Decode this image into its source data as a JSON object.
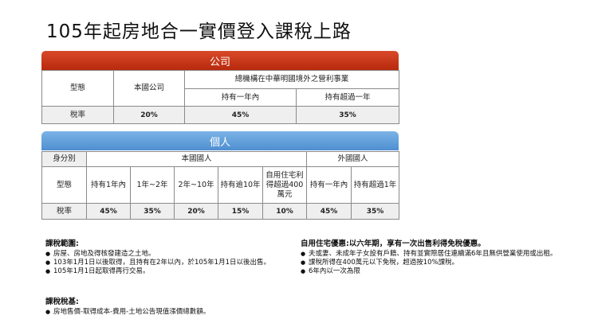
{
  "title": "105年起房地合一實價登入課稅上路",
  "company": {
    "header": "公司",
    "type_label": "型態",
    "domestic": "本國公司",
    "foreign": "總機構在中華明國境外之營利事業",
    "foreign_sub": [
      "持有一年內",
      "持有超過一年"
    ],
    "rate_label": "稅率",
    "rates": [
      "20%",
      "45%",
      "35%"
    ]
  },
  "individual": {
    "header": "個人",
    "identity_label": "身分別",
    "domestic": "本國國人",
    "foreign": "外國國人",
    "type_label": "型態",
    "types": [
      "持有1年內",
      "1年~2年",
      "2年~10年",
      "持有逾10年",
      "自用住宅利得超過400萬元",
      "持有一年內",
      "持有超過1年"
    ],
    "rate_label": "稅率",
    "rates": [
      "45%",
      "35%",
      "20%",
      "15%",
      "10%",
      "45%",
      "35%"
    ]
  },
  "scope": {
    "heading": "課稅範圍:",
    "items": [
      "房屋、房地及得核發建造之土地。",
      "103年1月1日以後取得，且持有在2年以內，於105年1月1日以後出售。",
      "105年1月1日起取得再行交易。"
    ]
  },
  "base": {
    "heading": "課稅稅基:",
    "items": [
      "房地售價-取得成本-費用-土地公告現值漲價總數額。"
    ]
  },
  "preferential": {
    "heading": "自用住宅優惠:以六年期，享有一次出售利得免稅優惠。",
    "items": [
      "夫或妻、未成年子女設有戶籍、持有並實際居住連續滿6年且無供營業使用或出租。",
      "課稅所得在400萬元以下免稅，超過按10%課稅。",
      "6年內以一次為限"
    ]
  }
}
